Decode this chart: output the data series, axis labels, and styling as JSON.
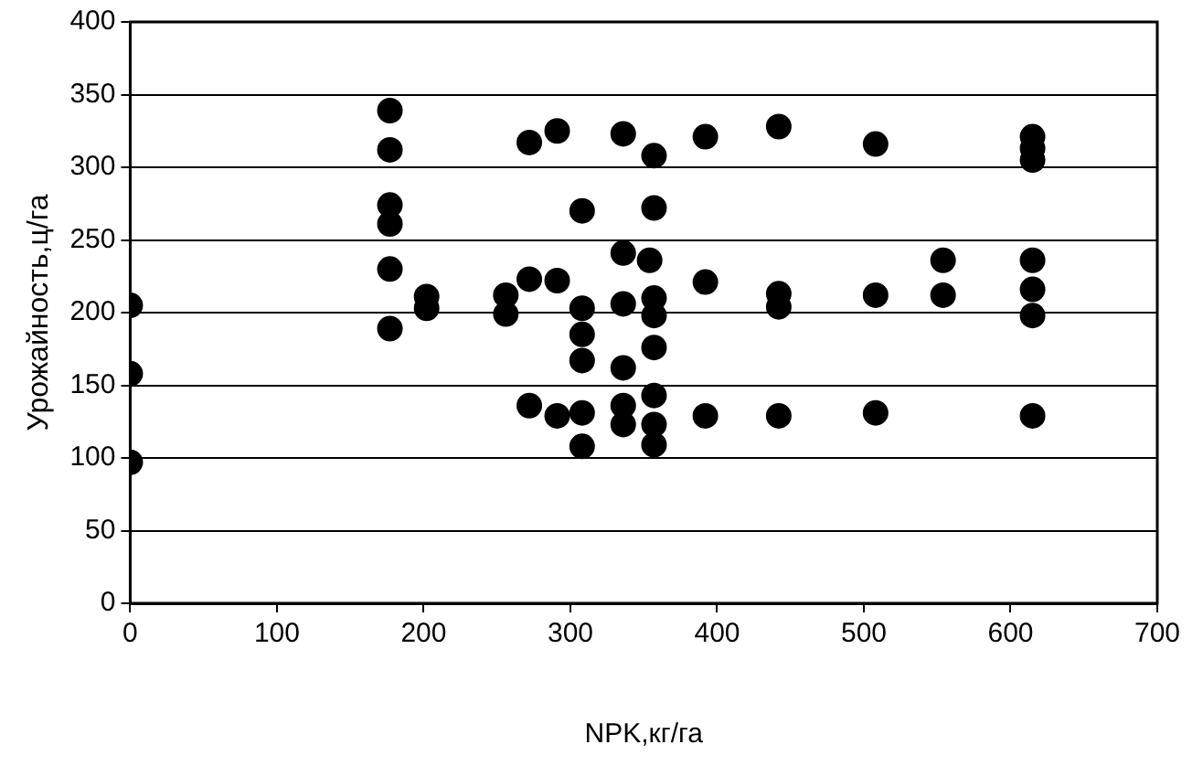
{
  "chart_data": {
    "type": "scatter",
    "xlabel": "NPK,кг/га",
    "ylabel": "Урожайность,ц/га",
    "x": [
      0,
      0,
      0,
      177,
      177,
      177,
      177,
      177,
      177,
      202,
      202,
      256,
      256,
      272,
      272,
      272,
      291,
      291,
      291,
      308,
      308,
      308,
      308,
      308,
      308,
      336,
      336,
      336,
      336,
      336,
      336,
      354,
      357,
      357,
      357,
      357,
      357,
      357,
      357,
      357,
      392,
      392,
      392,
      442,
      442,
      442,
      442,
      508,
      508,
      508,
      554,
      554,
      615,
      615,
      615,
      615,
      615,
      615,
      615
    ],
    "values": [
      205,
      158,
      97,
      339,
      312,
      274,
      261,
      230,
      189,
      211,
      203,
      212,
      199,
      317,
      223,
      136,
      325,
      222,
      129,
      270,
      203,
      185,
      167,
      131,
      108,
      323,
      241,
      206,
      162,
      136,
      123,
      236,
      308,
      272,
      210,
      198,
      176,
      143,
      123,
      109,
      321,
      221,
      129,
      328,
      213,
      204,
      129,
      316,
      212,
      131,
      236,
      212,
      321,
      313,
      305,
      236,
      216,
      198,
      129
    ],
    "color": "#000000",
    "marker": "circle",
    "xlim": [
      0,
      700
    ],
    "xticks": [
      0,
      100,
      200,
      300,
      400,
      500,
      600,
      700
    ],
    "ylim": [
      0,
      400
    ],
    "yticks": [
      0,
      50,
      100,
      150,
      200,
      250,
      300,
      350,
      400
    ],
    "grid": "y"
  }
}
